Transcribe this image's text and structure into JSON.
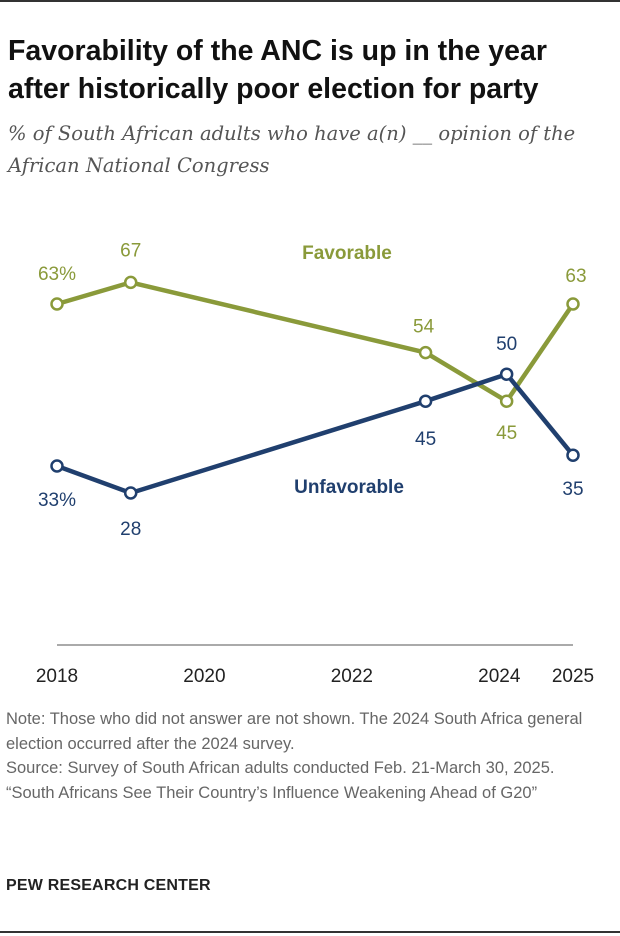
{
  "header": {
    "title": "Favorability of the ANC is up in the year after historically poor election for party",
    "subtitle": "% of South African adults who have a(n) __ opinion of the African National Congress"
  },
  "chart_data": {
    "type": "line",
    "title": "Favorability of the ANC is up in the year after historically poor election for party",
    "subtitle": "% of South African adults who have a(n) __ opinion of the African National Congress",
    "xlabel": "",
    "ylabel": "",
    "x_ticks": [
      2018,
      2020,
      2022,
      2024,
      2025
    ],
    "x_tick_labels": [
      "2018",
      "2020",
      "2022",
      "2024",
      "2025"
    ],
    "xlim": [
      2018,
      2025
    ],
    "ylim": [
      20,
      75
    ],
    "grid": false,
    "legend": "inline labels",
    "series": [
      {
        "name": "Favorable",
        "color": "#8a9a3a",
        "x": [
          2018,
          2019,
          2023,
          2024.1,
          2025
        ],
        "values": [
          63,
          67,
          54,
          45,
          63
        ],
        "labels": [
          "63%",
          "67",
          "54",
          "45",
          "63"
        ]
      },
      {
        "name": "Unfavorable",
        "color": "#203f6e",
        "x": [
          2018,
          2019,
          2023,
          2024.1,
          2025
        ],
        "values": [
          33,
          28,
          45,
          50,
          35
        ],
        "labels": [
          "33%",
          "28",
          "45",
          "50",
          "35"
        ]
      }
    ]
  },
  "footer": {
    "note": "Note: Those who did not answer are not shown. The 2024 South Africa general election occurred after the 2024 survey.",
    "source": "Source: Survey of South African adults conducted Feb. 21-March 30, 2025.",
    "report": "“South Africans See Their Country’s Influence Weakening Ahead of G20”",
    "brand": "PEW RESEARCH CENTER"
  }
}
